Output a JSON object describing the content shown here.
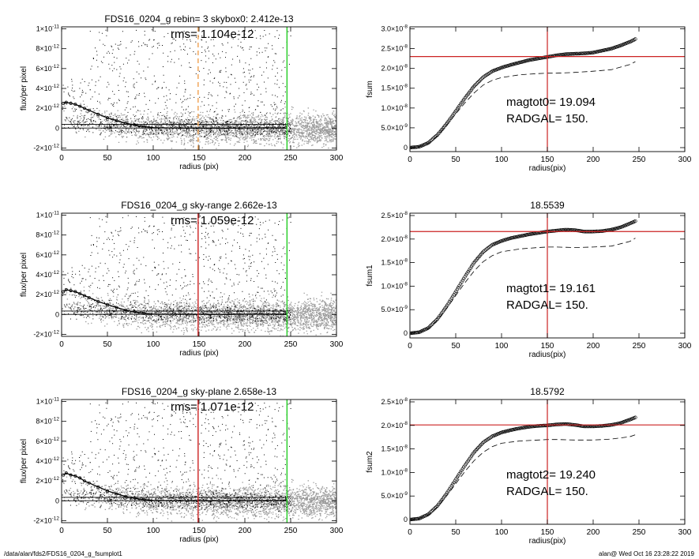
{
  "footer": {
    "left": "/data/alan/fds2/FDS16_0204_g_fsumplot1",
    "right": "alan@  Wed Oct 16 23:28:22 2019"
  },
  "colors": {
    "scatter": "#9a9a9a",
    "dots": "#000000",
    "red": "#cc2222",
    "green": "#22cc22",
    "orange": "#f0a050"
  },
  "chart_data": [
    {
      "type": "scatter",
      "title": "FDS16_0204_g rebin= 3    skybox0:  2.412e-13",
      "annotation": "rms= 1.104e-12",
      "xlabel": "radius (pix)",
      "ylabel": "flux/per pixel",
      "xlim": [
        0,
        300
      ],
      "ylim": [
        -2.2e-12,
        1.02e-11
      ],
      "xticks": [
        "0",
        "50",
        "100",
        "150",
        "200",
        "250",
        "300"
      ],
      "yticks": [
        {
          "v": 1e-11,
          "m": "1×10",
          "e": "-11"
        },
        {
          "v": 8e-12,
          "m": "8×10",
          "e": "-12"
        },
        {
          "v": 6e-12,
          "m": "6×10",
          "e": "-12"
        },
        {
          "v": 4e-12,
          "m": "4×10",
          "e": "-12"
        },
        {
          "v": 2e-12,
          "m": "2×10",
          "e": "-12"
        },
        {
          "v": 0,
          "m": "0",
          "e": ""
        },
        {
          "v": -2e-12,
          "m": "-2×10",
          "e": "-12"
        }
      ],
      "sky_lines": [
        3.8e-13,
        1.2e-14
      ],
      "vlines": [
        {
          "x": 149,
          "color": "#f0a050",
          "dash": true
        },
        {
          "x": 246,
          "color": "#22cc22",
          "dash": false
        }
      ],
      "profile": {
        "x": [
          2,
          5,
          10,
          15,
          20,
          25,
          30,
          40,
          50,
          60,
          70,
          80,
          90,
          100,
          120,
          150,
          180,
          200,
          220,
          245
        ],
        "y": [
          2.5e-12,
          2.6e-12,
          2.5e-12,
          2.4e-12,
          2.2e-12,
          2e-12,
          1.8e-12,
          1.4e-12,
          1.05e-12,
          7.5e-13,
          5e-13,
          3e-13,
          1.5e-13,
          5e-14,
          2e-14,
          1e-14,
          -1e-14,
          2e-14,
          3e-14,
          1e-14
        ]
      }
    },
    {
      "type": "line",
      "title": "",
      "xlabel": "radius(pix)",
      "ylabel": "fsum",
      "xlim": [
        0,
        300
      ],
      "ylim": [
        -1e-09,
        3.05e-08
      ],
      "xticks": [
        "0",
        "50",
        "100",
        "150",
        "200",
        "250",
        "300"
      ],
      "yticks": [
        {
          "v": 3e-08,
          "m": "3.0×10",
          "e": "-8"
        },
        {
          "v": 2.5e-08,
          "m": "2.5×10",
          "e": "-8"
        },
        {
          "v": 2e-08,
          "m": "2.0×10",
          "e": "-8"
        },
        {
          "v": 1.5e-08,
          "m": "1.5×10",
          "e": "-8"
        },
        {
          "v": 1e-08,
          "m": "1.0×10",
          "e": "-8"
        },
        {
          "v": 5e-09,
          "m": "5.0×10",
          "e": "-9"
        },
        {
          "v": 0,
          "m": "0",
          "e": ""
        }
      ],
      "annotations": [
        "magtot0=  19.094",
        "RADGAL=    150."
      ],
      "hline": 2.3e-08,
      "vline": 150,
      "curve": {
        "x": [
          0,
          10,
          20,
          30,
          40,
          50,
          60,
          70,
          80,
          90,
          100,
          110,
          120,
          130,
          140,
          150,
          160,
          170,
          180,
          190,
          200,
          210,
          220,
          230,
          240,
          246
        ],
        "y": [
          0,
          2e-10,
          1.2e-09,
          3.2e-09,
          6e-09,
          9.2e-09,
          1.25e-08,
          1.55e-08,
          1.78e-08,
          1.93e-08,
          2.02e-08,
          2.09e-08,
          2.15e-08,
          2.21e-08,
          2.25e-08,
          2.29e-08,
          2.33e-08,
          2.36e-08,
          2.37e-08,
          2.38e-08,
          2.4e-08,
          2.45e-08,
          2.5e-08,
          2.58e-08,
          2.67e-08,
          2.74e-08
        ]
      },
      "dashed": {
        "x": [
          0,
          10,
          20,
          30,
          40,
          50,
          60,
          70,
          80,
          90,
          100,
          120,
          140,
          150,
          160,
          180,
          200,
          220,
          240,
          246
        ],
        "y": [
          0,
          2e-10,
          1.1e-09,
          3e-09,
          5.6e-09,
          8.5e-09,
          1.13e-08,
          1.38e-08,
          1.58e-08,
          1.7e-08,
          1.77e-08,
          1.84e-08,
          1.87e-08,
          1.88e-08,
          1.88e-08,
          1.9e-08,
          1.93e-08,
          1.97e-08,
          2.1e-08,
          2.17e-08
        ]
      }
    },
    {
      "type": "scatter",
      "title": "FDS16_0204_g sky-range  2.662e-13",
      "annotation": "rms= 1.059e-12",
      "xlabel": "radius (pix)",
      "ylabel": "flux/per pixel",
      "xlim": [
        0,
        300
      ],
      "ylim": [
        -2.2e-12,
        1.02e-11
      ],
      "xticks": [
        "0",
        "50",
        "100",
        "150",
        "200",
        "250",
        "300"
      ],
      "yticks": [
        {
          "v": 1e-11,
          "m": "1×10",
          "e": "-11"
        },
        {
          "v": 8e-12,
          "m": "8×10",
          "e": "-12"
        },
        {
          "v": 6e-12,
          "m": "6×10",
          "e": "-12"
        },
        {
          "v": 4e-12,
          "m": "4×10",
          "e": "-12"
        },
        {
          "v": 2e-12,
          "m": "2×10",
          "e": "-12"
        },
        {
          "v": 0,
          "m": "0",
          "e": ""
        },
        {
          "v": -2e-12,
          "m": "-2×10",
          "e": "-12"
        }
      ],
      "sky_lines": [
        3.5e-13,
        1.2e-14
      ],
      "vlines": [
        {
          "x": 149,
          "color": "#cc2222",
          "dash": false
        },
        {
          "x": 246,
          "color": "#22cc22",
          "dash": false
        }
      ],
      "profile": {
        "x": [
          2,
          5,
          10,
          15,
          20,
          25,
          30,
          40,
          50,
          60,
          70,
          80,
          90,
          100,
          120,
          150,
          180,
          200,
          220,
          245
        ],
        "y": [
          2.3e-12,
          2.5e-12,
          2.4e-12,
          2.3e-12,
          2.1e-12,
          1.9e-12,
          1.7e-12,
          1.3e-12,
          1e-12,
          7e-13,
          4.5e-13,
          2.5e-13,
          1.2e-13,
          4e-14,
          3e-14,
          2e-14,
          1e-14,
          3e-14,
          3e-14,
          2e-14
        ]
      }
    },
    {
      "type": "line",
      "title": "18.5539",
      "xlabel": "radius(pix)",
      "ylabel": "fsum1",
      "xlim": [
        0,
        300
      ],
      "ylim": [
        -1e-09,
        2.55e-08
      ],
      "xticks": [
        "0",
        "50",
        "100",
        "150",
        "200",
        "250",
        "300"
      ],
      "yticks": [
        {
          "v": 2.5e-08,
          "m": "2.5×10",
          "e": "-8"
        },
        {
          "v": 2e-08,
          "m": "2.0×10",
          "e": "-8"
        },
        {
          "v": 1.5e-08,
          "m": "1.5×10",
          "e": "-8"
        },
        {
          "v": 1e-08,
          "m": "1.0×10",
          "e": "-8"
        },
        {
          "v": 5e-09,
          "m": "5.0×10",
          "e": "-9"
        },
        {
          "v": 0,
          "m": "0",
          "e": ""
        }
      ],
      "annotations": [
        "magtot1=  19.161",
        "RADGAL=    150."
      ],
      "hline": 2.16e-08,
      "vline": 150,
      "curve": {
        "x": [
          0,
          10,
          20,
          30,
          40,
          50,
          60,
          70,
          80,
          90,
          100,
          110,
          120,
          130,
          140,
          150,
          160,
          170,
          180,
          190,
          200,
          210,
          220,
          230,
          240,
          246
        ],
        "y": [
          0,
          2e-10,
          1.1e-09,
          3e-09,
          5.7e-09,
          8.8e-09,
          1.2e-08,
          1.5e-08,
          1.73e-08,
          1.88e-08,
          1.96e-08,
          2.02e-08,
          2.06e-08,
          2.1e-08,
          2.13e-08,
          2.16e-08,
          2.18e-08,
          2.2e-08,
          2.19e-08,
          2.16e-08,
          2.16e-08,
          2.17e-08,
          2.2e-08,
          2.25e-08,
          2.33e-08,
          2.38e-08
        ]
      },
      "dashed": {
        "x": [
          0,
          10,
          20,
          30,
          40,
          50,
          60,
          70,
          80,
          90,
          100,
          120,
          140,
          150,
          160,
          180,
          200,
          220,
          240,
          246
        ],
        "y": [
          0,
          2e-10,
          1e-09,
          2.8e-09,
          5.2e-09,
          8e-09,
          1.07e-08,
          1.32e-08,
          1.52e-08,
          1.65e-08,
          1.73e-08,
          1.79e-08,
          1.82e-08,
          1.83e-08,
          1.83e-08,
          1.82e-08,
          1.83e-08,
          1.85e-08,
          1.95e-08,
          2.02e-08
        ]
      }
    },
    {
      "type": "scatter",
      "title": "FDS16_0204_g sky-plane  2.658e-13",
      "annotation": "rms= 1.071e-12",
      "xlabel": "radius (pix)",
      "ylabel": "flux/per pixel",
      "xlim": [
        0,
        300
      ],
      "ylim": [
        -2.2e-12,
        1.02e-11
      ],
      "xticks": [
        "0",
        "50",
        "100",
        "150",
        "200",
        "250",
        "300"
      ],
      "yticks": [
        {
          "v": 1e-11,
          "m": "1×10",
          "e": "-11"
        },
        {
          "v": 8e-12,
          "m": "8×10",
          "e": "-12"
        },
        {
          "v": 6e-12,
          "m": "6×10",
          "e": "-12"
        },
        {
          "v": 4e-12,
          "m": "4×10",
          "e": "-12"
        },
        {
          "v": 2e-12,
          "m": "2×10",
          "e": "-12"
        },
        {
          "v": 0,
          "m": "0",
          "e": ""
        },
        {
          "v": -2e-12,
          "m": "-2×10",
          "e": "-12"
        }
      ],
      "sky_lines": [
        3.5e-13,
        1.2e-14
      ],
      "vlines": [
        {
          "x": 149,
          "color": "#cc2222",
          "dash": false
        },
        {
          "x": 246,
          "color": "#22cc22",
          "dash": false
        }
      ],
      "profile": {
        "x": [
          2,
          5,
          10,
          15,
          20,
          25,
          30,
          40,
          50,
          60,
          70,
          80,
          90,
          100,
          120,
          150,
          180,
          200,
          220,
          245
        ],
        "y": [
          2.6e-12,
          2.8e-12,
          2.6e-12,
          2.5e-12,
          2.3e-12,
          2e-12,
          1.8e-12,
          1.4e-12,
          1e-12,
          7e-13,
          4.5e-13,
          2.5e-13,
          1.2e-13,
          4e-14,
          2e-14,
          1e-14,
          0,
          2e-14,
          3e-14,
          2e-14
        ]
      }
    },
    {
      "type": "line",
      "title": "18.5792",
      "xlabel": "radius(pix)",
      "ylabel": "fsum2",
      "xlim": [
        0,
        300
      ],
      "ylim": [
        -1e-09,
        2.55e-08
      ],
      "xticks": [
        "0",
        "50",
        "100",
        "150",
        "200",
        "250",
        "300"
      ],
      "yticks": [
        {
          "v": 2.5e-08,
          "m": "2.5×10",
          "e": "-8"
        },
        {
          "v": 2e-08,
          "m": "2.0×10",
          "e": "-8"
        },
        {
          "v": 1.5e-08,
          "m": "1.5×10",
          "e": "-8"
        },
        {
          "v": 1e-08,
          "m": "1.0×10",
          "e": "-8"
        },
        {
          "v": 5e-09,
          "m": "5.0×10",
          "e": "-9"
        },
        {
          "v": 0,
          "m": "0",
          "e": ""
        }
      ],
      "annotations": [
        "magtot2=  19.240",
        "RADGAL=    150."
      ],
      "hline": 2.01e-08,
      "vline": 150,
      "curve": {
        "x": [
          0,
          10,
          20,
          30,
          40,
          50,
          60,
          70,
          80,
          90,
          100,
          110,
          120,
          130,
          140,
          150,
          160,
          170,
          180,
          190,
          200,
          210,
          220,
          230,
          240,
          246
        ],
        "y": [
          0,
          2e-10,
          1.1e-09,
          2.9e-09,
          5.5e-09,
          8.5e-09,
          1.15e-08,
          1.43e-08,
          1.64e-08,
          1.77e-08,
          1.85e-08,
          1.9e-08,
          1.94e-08,
          1.97e-08,
          1.99e-08,
          2e-08,
          2.02e-08,
          2.03e-08,
          2.01e-08,
          1.98e-08,
          1.98e-08,
          1.99e-08,
          2.01e-08,
          2.05e-08,
          2.12e-08,
          2.17e-08
        ]
      },
      "dashed": {
        "x": [
          0,
          10,
          20,
          30,
          40,
          50,
          60,
          70,
          80,
          90,
          100,
          120,
          140,
          150,
          160,
          180,
          200,
          220,
          240,
          246
        ],
        "y": [
          0,
          2e-10,
          1e-09,
          2.7e-09,
          5e-09,
          7.6e-09,
          1.02e-08,
          1.25e-08,
          1.43e-08,
          1.55e-08,
          1.62e-08,
          1.67e-08,
          1.69e-08,
          1.7e-08,
          1.7e-08,
          1.69e-08,
          1.69e-08,
          1.71e-08,
          1.76e-08,
          1.8e-08
        ]
      }
    }
  ]
}
